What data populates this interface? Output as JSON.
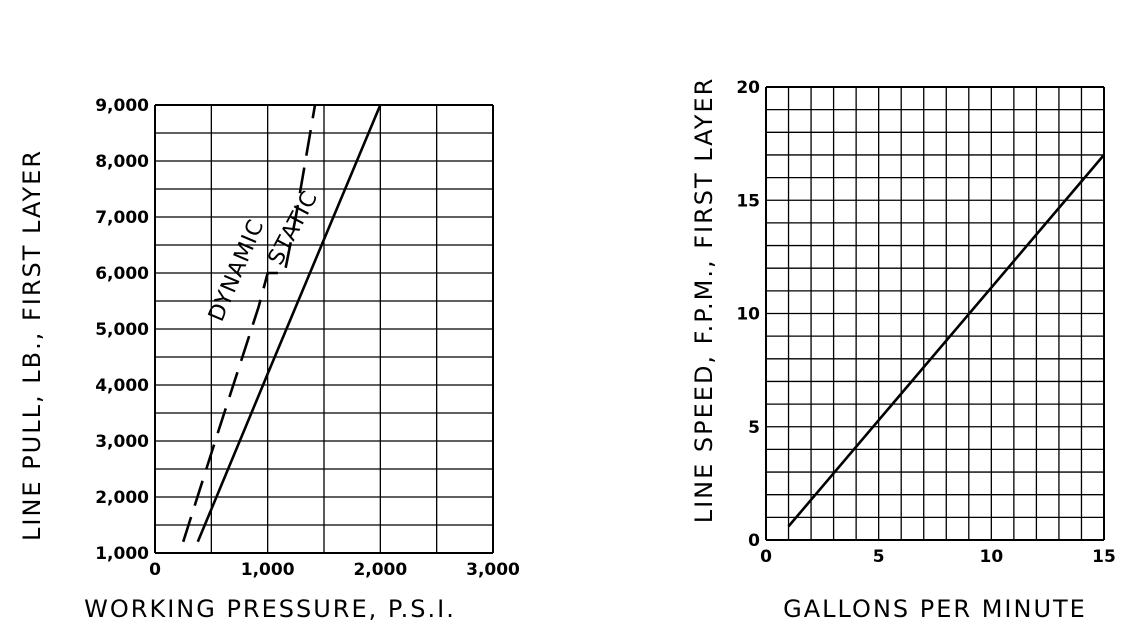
{
  "chart_data": [
    {
      "type": "line",
      "xlabel": "WORKING PRESSURE, P.S.I.",
      "ylabel": "LINE PULL, LB., FIRST LAYER",
      "xlim": [
        0,
        3000
      ],
      "ylim": [
        1000,
        9000
      ],
      "grid": true,
      "x_ticks": [
        "0",
        "1,000",
        "2,000",
        "3,000"
      ],
      "y_ticks": [
        "1,000",
        "2,000",
        "3,000",
        "4,000",
        "5,000",
        "6,000",
        "7,000",
        "8,000",
        "9,000"
      ],
      "series": [
        {
          "name": "DYNAMIC",
          "style": "dashed",
          "points": [
            [
              250,
              1200
            ],
            [
              550,
              3100
            ],
            [
              920,
              5400
            ],
            [
              1000,
              6000
            ],
            [
              1150,
              6000
            ],
            [
              1250,
              7000
            ],
            [
              1420,
              9000
            ]
          ]
        },
        {
          "name": "STATIC",
          "style": "solid",
          "points": [
            [
              380,
              1200
            ],
            [
              1000,
              4200
            ],
            [
              2000,
              9000
            ]
          ]
        }
      ]
    },
    {
      "type": "line",
      "xlabel": "GALLONS PER MINUTE",
      "ylabel": "LINE SPEED, F.P.M., FIRST LAYER",
      "xlim": [
        0,
        15
      ],
      "ylim": [
        0,
        20
      ],
      "grid": true,
      "x_ticks": [
        "0",
        "5",
        "10",
        "15"
      ],
      "y_ticks": [
        "0",
        "5",
        "10",
        "15",
        "20"
      ],
      "series": [
        {
          "style": "solid",
          "points": [
            [
              1,
              0.6
            ],
            [
              15,
              17
            ]
          ]
        }
      ]
    }
  ]
}
